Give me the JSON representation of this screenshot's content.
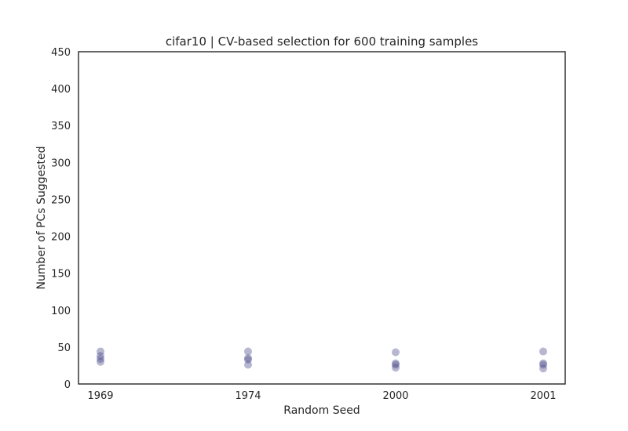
{
  "chart_data": {
    "type": "scatter",
    "title": "cifar10 | CV-based selection for 600 training samples",
    "xlabel": "Random Seed",
    "ylabel": "Number of PCs Suggested",
    "categories": [
      "1969",
      "1974",
      "2000",
      "2001"
    ],
    "ylim": [
      0,
      450
    ],
    "yticks": [
      0,
      50,
      100,
      150,
      200,
      250,
      300,
      350,
      400,
      450
    ],
    "grid": false,
    "point_color": "#4c4c8c",
    "point_opacity": 0.4,
    "points": [
      {
        "x": "1969",
        "y": 44
      },
      {
        "x": "1969",
        "y": 38
      },
      {
        "x": "1969",
        "y": 34
      },
      {
        "x": "1969",
        "y": 30
      },
      {
        "x": "1974",
        "y": 44
      },
      {
        "x": "1974",
        "y": 35
      },
      {
        "x": "1974",
        "y": 33
      },
      {
        "x": "1974",
        "y": 26
      },
      {
        "x": "2000",
        "y": 43
      },
      {
        "x": "2000",
        "y": 28
      },
      {
        "x": "2000",
        "y": 26
      },
      {
        "x": "2000",
        "y": 22
      },
      {
        "x": "2001",
        "y": 44
      },
      {
        "x": "2001",
        "y": 28
      },
      {
        "x": "2001",
        "y": 26
      },
      {
        "x": "2001",
        "y": 21
      }
    ]
  }
}
